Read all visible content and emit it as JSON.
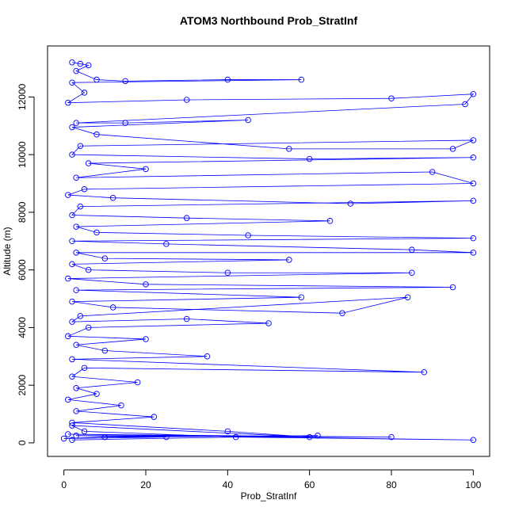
{
  "chart_data": {
    "type": "line",
    "title": "ATOM3 Northbound Prob_StratInf",
    "x_label": "Prob_StratInf",
    "y_label": "Altitude (m)",
    "x": [
      2,
      4,
      6,
      3,
      8,
      15,
      40,
      58,
      2,
      5,
      1,
      30,
      80,
      100,
      98,
      3,
      15,
      45,
      2,
      8,
      55,
      95,
      100,
      4,
      2,
      60,
      100,
      6,
      20,
      3,
      90,
      100,
      5,
      1,
      12,
      70,
      100,
      4,
      2,
      30,
      65,
      3,
      8,
      45,
      100,
      2,
      25,
      85,
      100,
      3,
      10,
      55,
      2,
      6,
      40,
      85,
      1,
      20,
      95,
      3,
      58,
      2,
      12,
      68,
      84,
      4,
      2,
      30,
      50,
      6,
      1,
      20,
      3,
      10,
      35,
      2,
      88,
      5,
      2,
      18,
      3,
      8,
      1,
      14,
      3,
      22,
      2,
      40,
      60,
      2,
      5,
      42,
      100,
      1,
      80,
      3,
      25,
      0,
      10,
      62,
      2
    ],
    "series": [
      {
        "name": "Altitude",
        "color": "#0000ff",
        "values": [
          13200,
          13150,
          13100,
          12900,
          12600,
          12550,
          12600,
          12600,
          12500,
          12150,
          11800,
          11900,
          11950,
          12100,
          11750,
          11100,
          11100,
          11200,
          10950,
          10700,
          10200,
          10200,
          10500,
          10300,
          10000,
          9850,
          9900,
          9700,
          9500,
          9200,
          9400,
          9000,
          8800,
          8600,
          8500,
          8300,
          8400,
          8200,
          7900,
          7800,
          7700,
          7500,
          7300,
          7200,
          7100,
          7000,
          6900,
          6700,
          6600,
          6600,
          6400,
          6350,
          6200,
          6000,
          5900,
          5900,
          5700,
          5500,
          5400,
          5300,
          5050,
          4900,
          4700,
          4500,
          5050,
          4400,
          4200,
          4300,
          4150,
          4000,
          3700,
          3600,
          3400,
          3200,
          3000,
          2900,
          2450,
          2600,
          2300,
          2100,
          1900,
          1700,
          1500,
          1300,
          1100,
          900,
          700,
          400,
          200,
          600,
          400,
          200,
          100,
          300,
          200,
          250,
          200,
          150,
          200,
          250,
          100
        ]
      }
    ],
    "xlim": [
      -4,
      104
    ],
    "ylim": [
      -470,
      13770
    ],
    "xticks": [
      0,
      20,
      40,
      60,
      80,
      100
    ],
    "yticks": [
      0,
      2000,
      4000,
      6000,
      8000,
      10000,
      12000
    ]
  }
}
